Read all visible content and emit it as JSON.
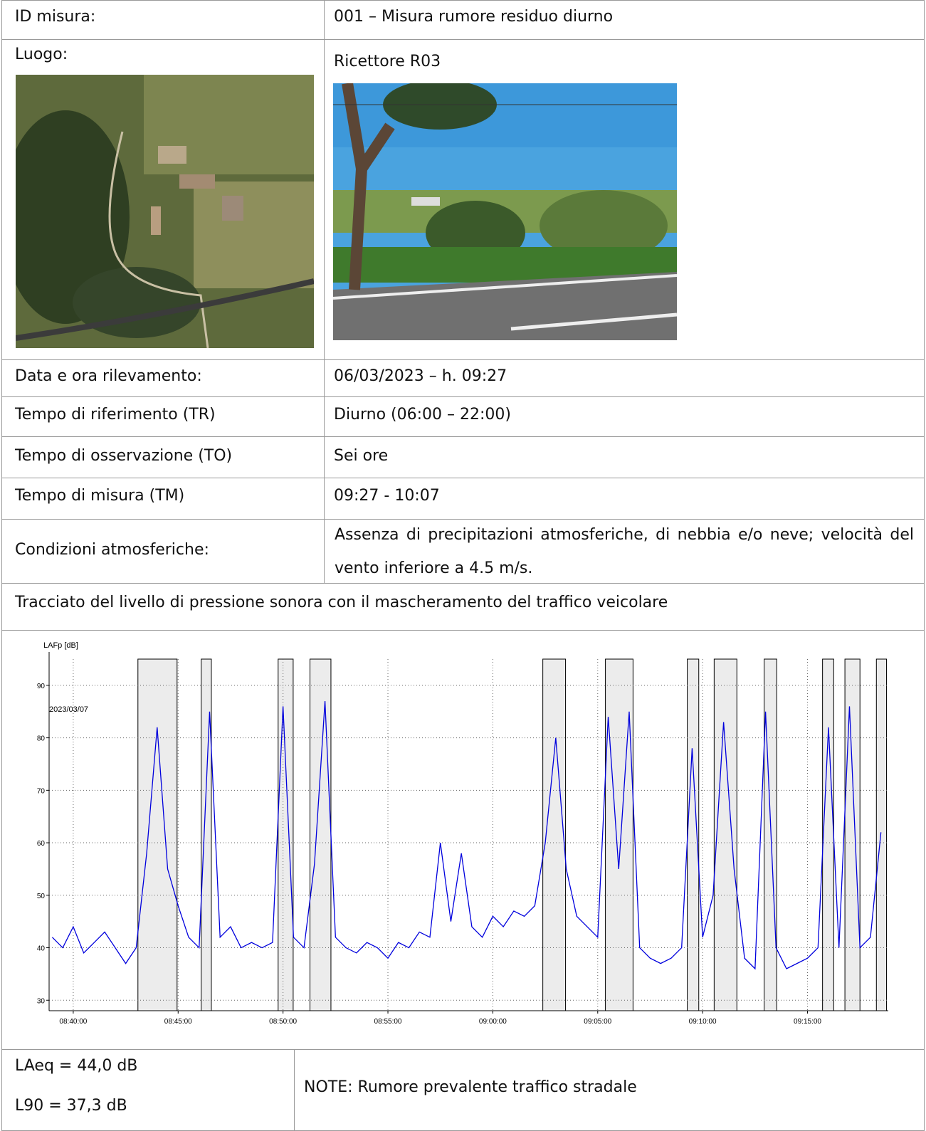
{
  "table": {
    "rows": [
      [
        "ID misura:",
        "001 – Misura rumore residuo diurno"
      ],
      [
        "Luogo:",
        "Ricettore R03"
      ],
      [
        "Data e ora rilevamento:",
        "06/03/2023 – h. 09:27"
      ],
      [
        "Tempo di riferimento (TR)",
        "Diurno (06:00 – 22:00)"
      ],
      [
        "Tempo di osservazione (TO)",
        "Sei ore"
      ],
      [
        "Tempo di misura (TM)",
        "09:27 - 10:07"
      ],
      [
        "Condizioni atmosferiche:",
        "Assenza di precipitazioni atmosferiche, di nebbia e/o neve; velocità del vento inferiore a 4.5 m/s."
      ]
    ],
    "chart_heading": "Tracciato del livello di pressione sonora con il mascheramento del traffico veicolare",
    "results": [
      "LAeq = 44,0 dB",
      "L90 = 37,3 dB"
    ],
    "note": "NOTE: Rumore prevalente traffico stradale"
  },
  "chart_data": {
    "type": "line",
    "y_label": "LAFp [dB]",
    "annotation": "2023/03/07",
    "color": "#0000dd",
    "x": [
      "08:39:00",
      "08:39:30",
      "08:40:00",
      "08:40:30",
      "08:41:00",
      "08:41:30",
      "08:42:00",
      "08:42:30",
      "08:43:00",
      "08:43:30",
      "08:44:00",
      "08:44:30",
      "08:45:00",
      "08:45:30",
      "08:46:00",
      "08:46:30",
      "08:47:00",
      "08:47:30",
      "08:48:00",
      "08:48:30",
      "08:49:00",
      "08:49:30",
      "08:50:00",
      "08:50:30",
      "08:51:00",
      "08:51:30",
      "08:52:00",
      "08:52:30",
      "08:53:00",
      "08:53:30",
      "08:54:00",
      "08:54:30",
      "08:55:00",
      "08:55:30",
      "08:56:00",
      "08:56:30",
      "08:57:00",
      "08:57:30",
      "08:58:00",
      "08:58:30",
      "08:59:00",
      "08:59:30",
      "09:00:00",
      "09:00:30",
      "09:01:00",
      "09:01:30",
      "09:02:00",
      "09:02:30",
      "09:03:00",
      "09:03:30",
      "09:04:00",
      "09:04:30",
      "09:05:00",
      "09:05:30",
      "09:06:00",
      "09:06:30",
      "09:07:00",
      "09:07:30",
      "09:08:00",
      "09:08:30",
      "09:09:00",
      "09:09:30",
      "09:10:00",
      "09:10:30",
      "09:11:00",
      "09:11:30",
      "09:12:00",
      "09:12:30",
      "09:13:00",
      "09:13:30",
      "09:14:00",
      "09:14:30",
      "09:15:00",
      "09:15:30",
      "09:16:00",
      "09:16:30",
      "09:17:00",
      "09:17:30",
      "09:18:00",
      "09:18:30"
    ],
    "values": [
      42,
      40,
      44,
      39,
      41,
      43,
      40,
      37,
      40,
      58,
      82,
      55,
      48,
      42,
      40,
      85,
      42,
      44,
      40,
      41,
      40,
      41,
      86,
      42,
      40,
      56,
      87,
      42,
      40,
      39,
      41,
      40,
      38,
      41,
      40,
      43,
      42,
      60,
      45,
      58,
      44,
      42,
      46,
      44,
      47,
      46,
      48,
      60,
      80,
      55,
      46,
      44,
      42,
      84,
      55,
      85,
      40,
      38,
      37,
      38,
      40,
      78,
      42,
      50,
      83,
      55,
      38,
      36,
      85,
      40,
      36,
      37,
      38,
      40,
      82,
      40,
      86,
      40,
      42,
      62
    ],
    "masked_intervals": [
      [
        "08:43:05",
        "08:44:57"
      ],
      [
        "08:46:06",
        "08:46:35"
      ],
      [
        "08:49:46",
        "08:50:29"
      ],
      [
        "08:51:17",
        "08:52:17"
      ],
      [
        "09:02:23",
        "09:03:28"
      ],
      [
        "09:05:22",
        "09:06:41"
      ],
      [
        "09:09:16",
        "09:09:49"
      ],
      [
        "09:10:33",
        "09:11:38"
      ],
      [
        "09:12:56",
        "09:13:32"
      ],
      [
        "09:15:43",
        "09:16:15"
      ],
      [
        "09:16:47",
        "09:17:30"
      ],
      [
        "09:18:17",
        "09:18:46"
      ]
    ],
    "xlim": [
      "08:38:51",
      "09:18:51"
    ],
    "xticks": [
      "08:40:00",
      "08:45:00",
      "08:50:00",
      "08:55:00",
      "09:00:00",
      "09:05:00",
      "09:10:00",
      "09:15:00"
    ],
    "ylim": [
      28,
      95
    ],
    "yticks": [
      30,
      40,
      50,
      60,
      70,
      80,
      90
    ],
    "grid": true
  }
}
